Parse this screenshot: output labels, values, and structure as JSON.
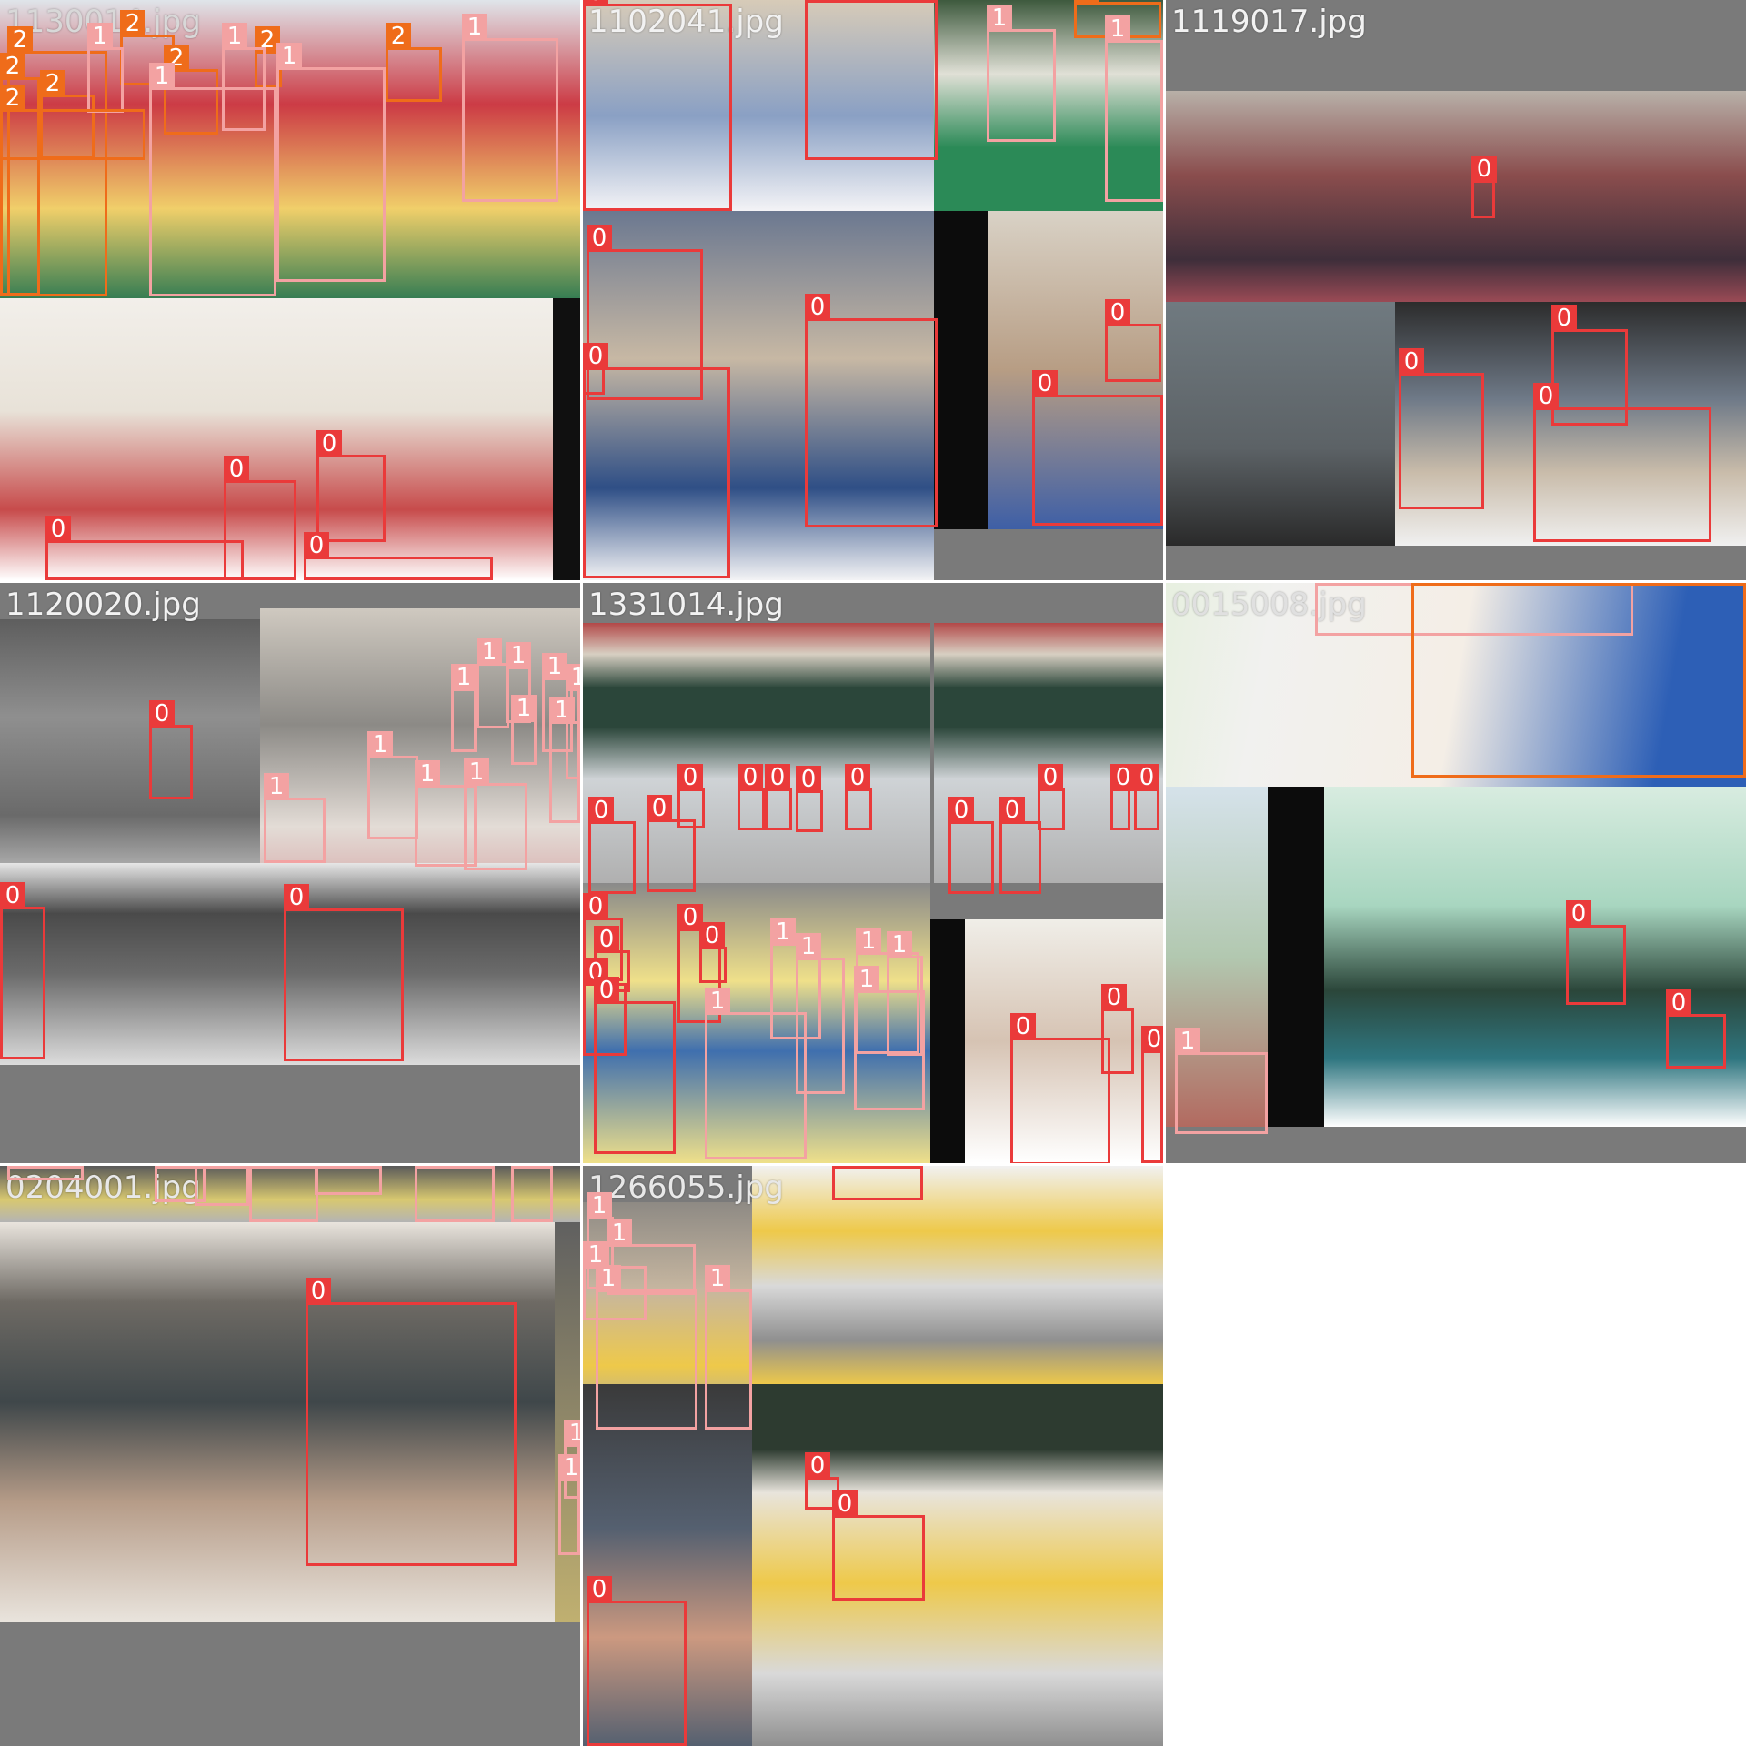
{
  "grid": {
    "tiles": [
      {
        "filename": "1130014.jpg",
        "scene": [
          "#2f7a52",
          "#c4c0b2"
        ],
        "subimages": [],
        "boxes": [
          {
            "label": "2"
          },
          {
            "label": "2"
          },
          {
            "label": "2"
          },
          {
            "label": "2"
          },
          {
            "label": "2"
          },
          {
            "label": "2"
          },
          {
            "label": "1"
          },
          {
            "label": "1"
          },
          {
            "label": "1"
          },
          {
            "label": "1"
          },
          {
            "label": "2"
          },
          {
            "label": "2"
          },
          {
            "label": "1"
          },
          {
            "label": "0"
          },
          {
            "label": "0"
          },
          {
            "label": "0"
          },
          {
            "label": "0"
          }
        ]
      },
      {
        "filename": "1102041.jpg",
        "scene": [
          "#7d9ab8",
          "#2a2a2a"
        ],
        "boxes": [
          {
            "label": "0"
          },
          {
            "label": "0"
          },
          {
            "label": "1"
          },
          {
            "label": "2"
          },
          {
            "label": "1"
          },
          {
            "label": "0"
          },
          {
            "label": "0"
          },
          {
            "label": "0"
          },
          {
            "label": "0"
          },
          {
            "label": "0"
          },
          {
            "label": "0"
          }
        ]
      },
      {
        "filename": "1119017.jpg",
        "scene": [
          "#8a4d4d",
          "#3c3c3c"
        ],
        "boxes": [
          {
            "label": "0"
          },
          {
            "label": "0"
          },
          {
            "label": "0"
          },
          {
            "label": "0"
          }
        ]
      },
      {
        "filename": "1120020.jpg",
        "scene": [
          "#8f8f8f",
          "#d8d2cc"
        ],
        "boxes": [
          {
            "label": "0"
          },
          {
            "label": "1"
          },
          {
            "label": "1"
          },
          {
            "label": "1"
          },
          {
            "label": "1"
          },
          {
            "label": "1"
          },
          {
            "label": "1"
          },
          {
            "label": "1"
          },
          {
            "label": "1"
          },
          {
            "label": "1"
          },
          {
            "label": "1"
          },
          {
            "label": "1"
          },
          {
            "label": "0"
          },
          {
            "label": "0"
          }
        ]
      },
      {
        "filename": "1331014.jpg",
        "scene": [
          "#d8cfc2",
          "#efe08a"
        ],
        "boxes": [
          {
            "label": "0"
          },
          {
            "label": "0"
          },
          {
            "label": "0"
          },
          {
            "label": "0"
          },
          {
            "label": "0"
          },
          {
            "label": "0"
          },
          {
            "label": "0"
          },
          {
            "label": "0"
          },
          {
            "label": "0"
          },
          {
            "label": "0"
          },
          {
            "label": "0"
          },
          {
            "label": "0"
          },
          {
            "label": "0"
          },
          {
            "label": "0"
          },
          {
            "label": "0"
          },
          {
            "label": "0"
          },
          {
            "label": "0"
          },
          {
            "label": "1"
          },
          {
            "label": "1"
          },
          {
            "label": "1"
          },
          {
            "label": "1"
          },
          {
            "label": "1"
          },
          {
            "label": "1"
          },
          {
            "label": "0"
          },
          {
            "label": "0"
          },
          {
            "label": "0"
          },
          {
            "label": "0"
          }
        ]
      },
      {
        "filename": "0015008.jpg",
        "scene": [
          "#f1f1ef",
          "#2d5fb6"
        ],
        "boxes": [
          {
            "label": "1"
          },
          {
            "label": "2"
          },
          {
            "label": "0"
          },
          {
            "label": "0"
          },
          {
            "label": "1"
          }
        ]
      },
      {
        "filename": "0204001.jpg",
        "scene": [
          "#e9e4dd",
          "#5a6468"
        ],
        "boxes": [
          {
            "label": "1"
          },
          {
            "label": "1"
          },
          {
            "label": "1"
          },
          {
            "label": "1"
          },
          {
            "label": "1"
          },
          {
            "label": "1"
          },
          {
            "label": "1"
          },
          {
            "label": "0"
          },
          {
            "label": "1"
          },
          {
            "label": "1"
          }
        ]
      },
      {
        "filename": "1266055.jpg",
        "scene": [
          "#eec94a",
          "#556070"
        ],
        "boxes": [
          {
            "label": "0"
          },
          {
            "label": "1"
          },
          {
            "label": "1"
          },
          {
            "label": "1"
          },
          {
            "label": "1"
          },
          {
            "label": "1"
          },
          {
            "label": "0"
          },
          {
            "label": "0"
          },
          {
            "label": "0"
          }
        ]
      }
    ]
  }
}
